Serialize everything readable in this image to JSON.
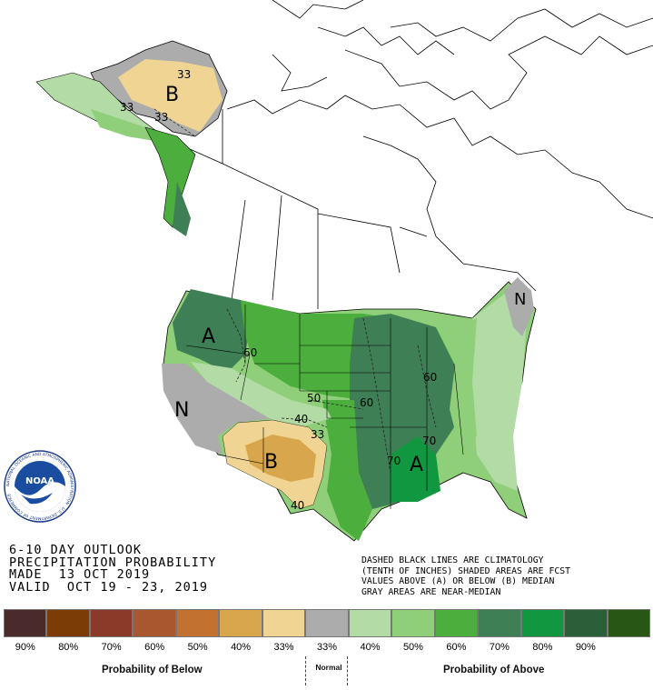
{
  "header": {
    "line1": "6-10 DAY OUTLOOK",
    "line2": "PRECIPITATION PROBABILITY",
    "line3": "MADE  13 OCT 2019",
    "line4": "VALID  OCT 19 - 23, 2019"
  },
  "notes": {
    "line1": "DASHED BLACK LINES ARE CLIMATOLOGY",
    "line2": "(TENTH OF INCHES) SHADED AREAS ARE FCST",
    "line3": "VALUES ABOVE (A) OR BELOW (B) MEDIAN",
    "line4": "GRAY AREAS ARE NEAR-MEDIAN"
  },
  "logo": {
    "text": "NOAA",
    "ring_text": "NATIONAL OCEANIC AND ATMOSPHERIC ADMINISTRATION · U.S. DEPARTMENT OF COMMERCE"
  },
  "map_labels": {
    "alaska_B": "B",
    "alaska_33a": "33",
    "alaska_33b": "33",
    "alaska_33c": "33",
    "northwest_A": "A",
    "west_N": "N",
    "southwest_B": "B",
    "southeast_A": "A",
    "northeast_N": "N",
    "c60_nw": "60",
    "c50": "50",
    "c40": "40",
    "c33": "33",
    "c60_mid": "60",
    "c60_east": "60",
    "c70a": "70",
    "c70b": "70",
    "c40_tx": "40"
  },
  "legend": {
    "swatches": [
      {
        "color": "#4a2a2a",
        "label": "90%"
      },
      {
        "color": "#7b3c06",
        "label": "80%"
      },
      {
        "color": "#8b3a2a",
        "label": "70%"
      },
      {
        "color": "#a8572f",
        "label": "60%"
      },
      {
        "color": "#c27130",
        "label": "50%"
      },
      {
        "color": "#d8a64d",
        "label": "40%"
      },
      {
        "color": "#f0d493",
        "label": "33%"
      },
      {
        "color": "#acacac",
        "label": "33%"
      },
      {
        "color": "#b3dba6",
        "label": "40%"
      },
      {
        "color": "#8fcf7a",
        "label": "50%"
      },
      {
        "color": "#4cae3d",
        "label": "60%"
      },
      {
        "color": "#3f7f55",
        "label": "70%"
      },
      {
        "color": "#10973f",
        "label": "80%"
      },
      {
        "color": "#2b5f3a",
        "label": "90%"
      },
      {
        "color": "#285614",
        "label": ""
      }
    ],
    "below_caption": "Probability of Below",
    "normal_caption": "Normal",
    "above_caption": "Probability of Above"
  }
}
